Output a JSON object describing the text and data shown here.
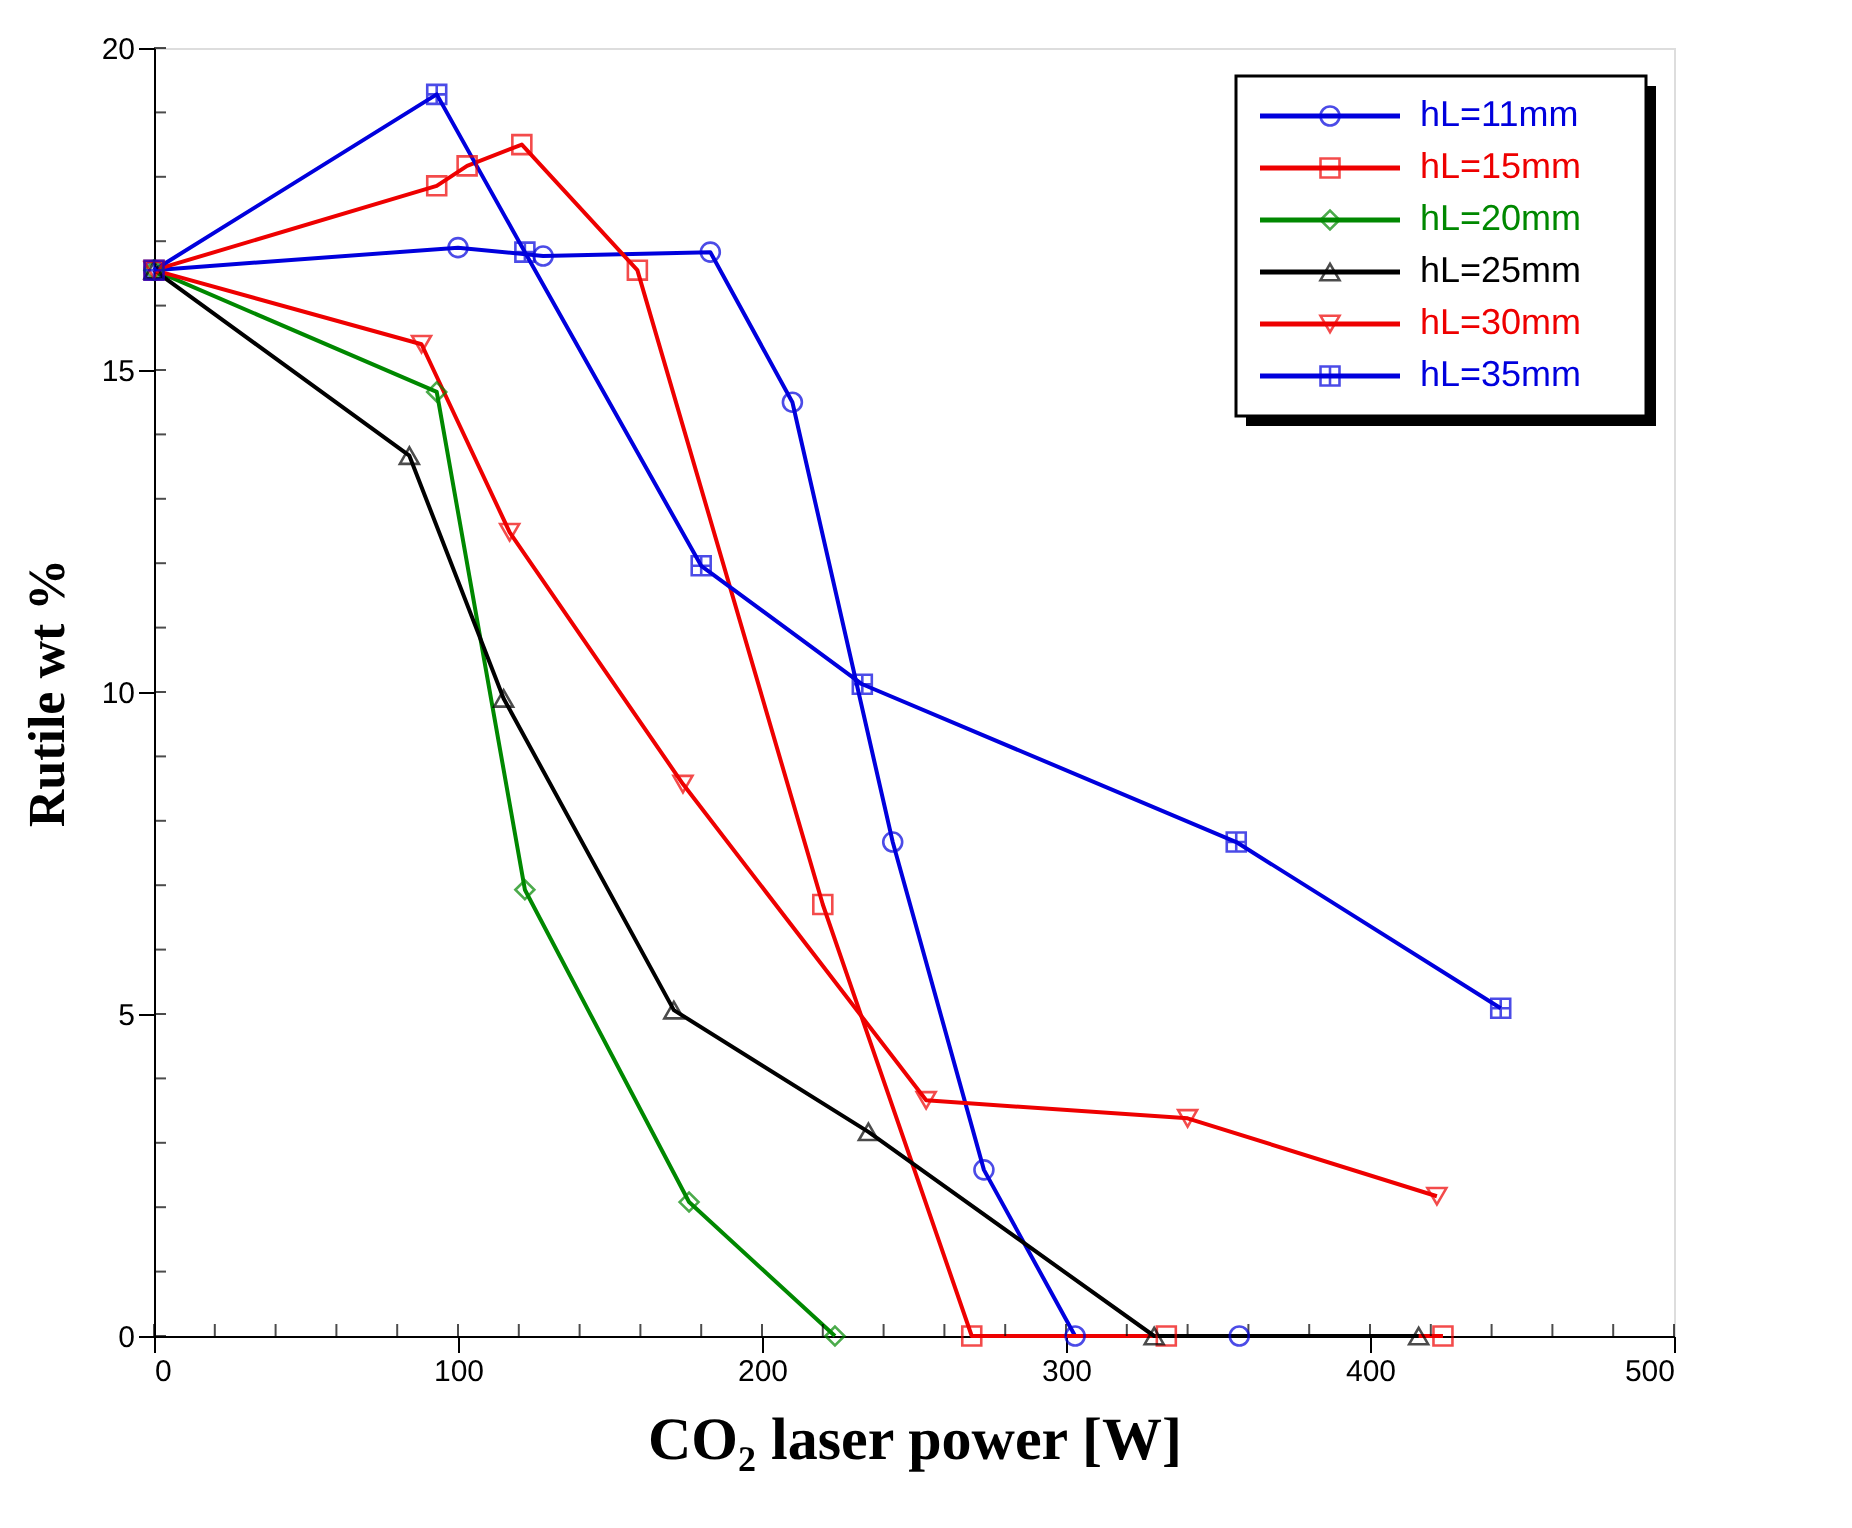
{
  "chart_data": {
    "type": "line",
    "xlabel": "CO₂ laser power [W]",
    "ylabel": "Rutile wt %",
    "xlim": [
      0,
      500
    ],
    "xticks": [
      0,
      100,
      200,
      300,
      400,
      500
    ],
    "ylim": [
      0,
      20
    ],
    "yticks": [
      0,
      5,
      10,
      15,
      20
    ],
    "grid": false,
    "legend": "top right",
    "line_style": "solid",
    "series": [
      {
        "name": "hL=11mm",
        "color": "#0000dd",
        "marker": "circle",
        "x": [
          0,
          100,
          128,
          183,
          210,
          243,
          273,
          303,
          357
        ],
        "values": [
          16.55,
          16.9,
          16.77,
          16.83,
          14.5,
          7.67,
          2.58,
          0,
          0
        ]
      },
      {
        "name": "hL=15mm",
        "color": "#ee0000",
        "marker": "square",
        "x": [
          0,
          93,
          103,
          121,
          159,
          220,
          269,
          333,
          424
        ],
        "values": [
          16.55,
          17.86,
          18.17,
          18.5,
          16.55,
          6.7,
          0,
          0,
          0
        ]
      },
      {
        "name": "hL=20mm",
        "color": "#008800",
        "marker": "diamond",
        "x": [
          0,
          93,
          122,
          176,
          224
        ],
        "values": [
          16.55,
          14.66,
          6.93,
          2.08,
          0
        ]
      },
      {
        "name": "hL=25mm",
        "color": "#000000",
        "marker": "triangle",
        "x": [
          0,
          84,
          115,
          171,
          235,
          329,
          416
        ],
        "values": [
          16.55,
          13.67,
          9.9,
          5.06,
          3.17,
          0,
          0
        ]
      },
      {
        "name": "hL=30mm",
        "color": "#ee0000",
        "marker": "triangle-down",
        "x": [
          0,
          88,
          117,
          174,
          254,
          340,
          422
        ],
        "values": [
          16.55,
          15.4,
          12.48,
          8.57,
          3.66,
          3.38,
          2.17
        ]
      },
      {
        "name": "hL=35mm",
        "color": "#0000dd",
        "marker": "cross",
        "x": [
          0,
          93,
          122,
          180,
          233,
          356,
          443
        ],
        "values": [
          16.55,
          19.28,
          16.83,
          11.96,
          10.12,
          7.67,
          5.09
        ]
      }
    ]
  }
}
